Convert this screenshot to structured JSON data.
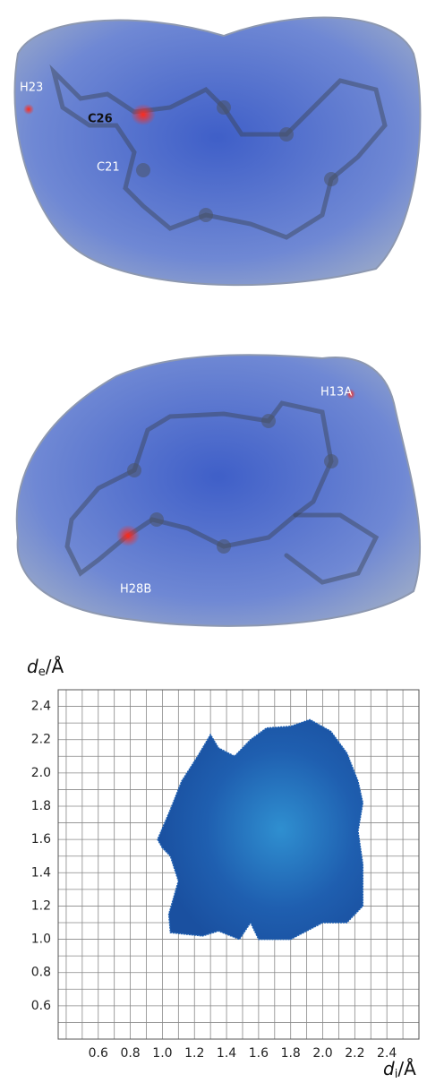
{
  "surfaces": [
    {
      "labels": [
        "H23",
        "C26",
        "C21"
      ]
    },
    {
      "labels": [
        "H13A",
        "H28B"
      ]
    }
  ],
  "chart_data": {
    "type": "fingerprint",
    "ylabel": "d",
    "ylabel_sub": "e",
    "ylabel_unit": "/Å",
    "xlabel": "d",
    "xlabel_sub": "i",
    "xlabel_unit": "/Å",
    "xlim": [
      0.35,
      2.6
    ],
    "ylim": [
      0.4,
      2.5
    ],
    "xticks": [
      0.6,
      0.8,
      {
        "value": 1,
        "label": "1.0"
      },
      1.2,
      1.4,
      1.6,
      1.8,
      {
        "value": 2,
        "label": "2.0"
      },
      2.2,
      2.4
    ],
    "yticks": [
      0.6,
      0.8,
      {
        "value": 1,
        "label": "1.0"
      },
      1.2,
      1.4,
      1.6,
      1.8,
      {
        "value": 2,
        "label": "2.0"
      },
      2.2,
      2.4
    ],
    "xgrid": [
      0.4,
      0.5,
      0.6,
      0.7,
      0.8,
      0.9,
      1,
      1.1,
      1.2,
      1.3,
      1.4,
      1.5,
      1.6,
      1.7,
      1.8,
      1.9,
      2,
      2.1,
      2.2,
      2.3,
      2.4,
      2.5
    ],
    "ygrid": [
      0.5,
      0.6,
      0.7,
      0.8,
      0.9,
      1,
      1.1,
      1.2,
      1.3,
      1.4,
      1.5,
      1.6,
      1.7,
      1.8,
      1.9,
      2,
      2.1,
      2.2,
      2.3,
      2.4
    ],
    "color": "#1f5fb0",
    "x": [
      1.0,
      0.97,
      1.05,
      1.12,
      1.22,
      1.3,
      1.35,
      1.45,
      1.55,
      1.65,
      1.8,
      1.92,
      2.05,
      2.15,
      2.22,
      2.25,
      2.22,
      2.25,
      2.25,
      2.15,
      2.0,
      1.9,
      1.8,
      1.6,
      1.55,
      1.48,
      1.35,
      1.25,
      1.05,
      1.04,
      1.1,
      1.05
    ],
    "y": [
      1.55,
      1.6,
      1.78,
      1.95,
      2.1,
      2.23,
      2.15,
      2.1,
      2.2,
      2.27,
      2.28,
      2.32,
      2.25,
      2.12,
      1.95,
      1.82,
      1.65,
      1.45,
      1.2,
      1.1,
      1.1,
      1.05,
      1.0,
      1.0,
      1.1,
      1.0,
      1.05,
      1.02,
      1.04,
      1.15,
      1.35,
      1.5
    ]
  }
}
